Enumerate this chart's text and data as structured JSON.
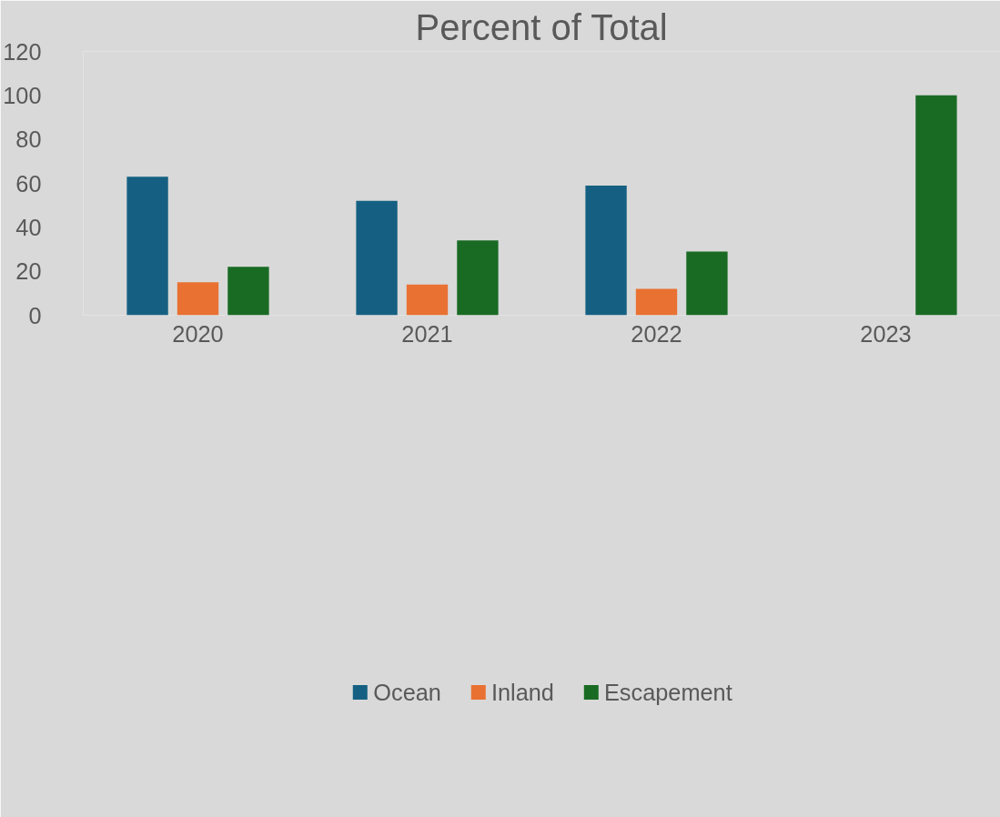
{
  "chart_data": {
    "type": "bar",
    "title": "Percent of Total",
    "categories": [
      "2020",
      "2021",
      "2022",
      "2023"
    ],
    "series": [
      {
        "name": "Ocean",
        "color": "#156082",
        "values": [
          63,
          52,
          59,
          null
        ]
      },
      {
        "name": "Inland",
        "color": "#e97132",
        "values": [
          15,
          14,
          12,
          null
        ]
      },
      {
        "name": "Escapement",
        "color": "#196b24",
        "values": [
          22,
          34,
          29,
          100
        ]
      }
    ],
    "ylim": [
      0,
      120
    ],
    "yticks": [
      0,
      20,
      40,
      60,
      80,
      100,
      120
    ],
    "grid": false,
    "legend": "bottom"
  }
}
